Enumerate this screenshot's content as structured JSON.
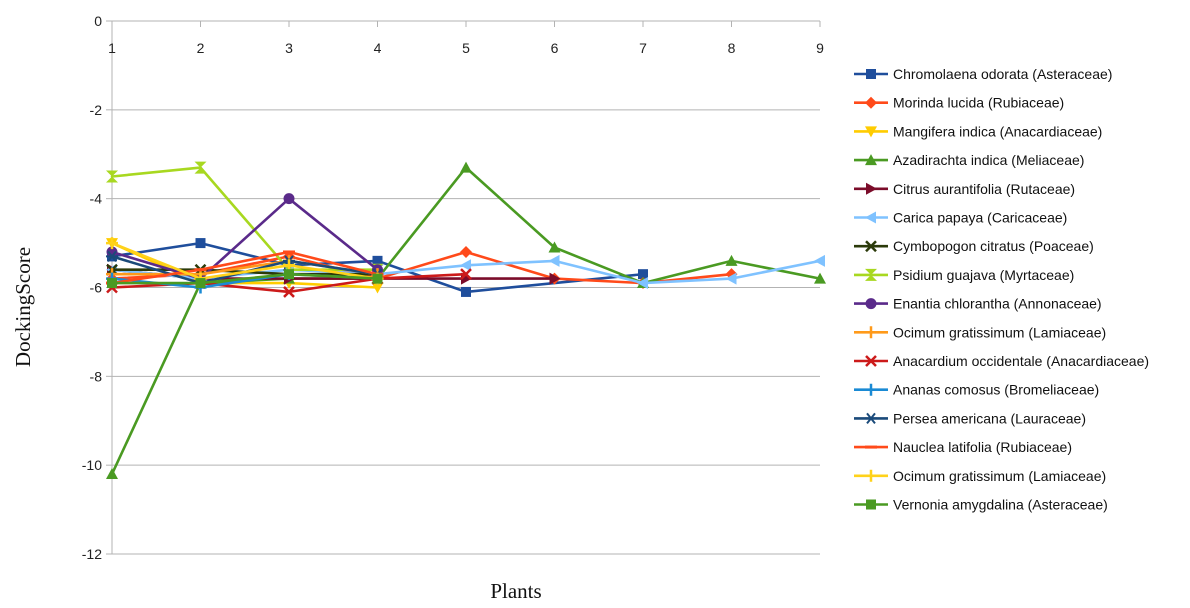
{
  "chart_data": {
    "type": "line",
    "title": "",
    "xlabel": "Plants",
    "ylabel": "DockingScore",
    "x": [
      1,
      2,
      3,
      4,
      5,
      6,
      7,
      8,
      9
    ],
    "x_tick_labels": [
      "1",
      "2",
      "3",
      "4",
      "5",
      "6",
      "7",
      "8",
      "9"
    ],
    "ylim": [
      -12,
      0
    ],
    "y_ticks": [
      0,
      -2,
      -4,
      -6,
      -8,
      -10,
      -12
    ],
    "y_tick_labels": [
      "0",
      "-2",
      "-4",
      "-6",
      "-8",
      "-10",
      "-12"
    ],
    "grid": "horizontal",
    "legend_position": "right",
    "series": [
      {
        "name": "Chromolaena odorata (Asteraceae)",
        "color": "#1f4e9c",
        "marker": "square",
        "values": [
          -5.3,
          -5.0,
          -5.5,
          -5.4,
          -6.1,
          null,
          -5.7,
          null,
          null
        ]
      },
      {
        "name": "Morinda lucida (Rubiaceae)",
        "color": "#ff4a1a",
        "marker": "diamond",
        "values": [
          -5.8,
          -5.7,
          -5.3,
          -5.8,
          -5.2,
          -5.8,
          -5.9,
          -5.7,
          null
        ]
      },
      {
        "name": "Mangifera indica (Anacardiaceae)",
        "color": "#ffcc00",
        "marker": "triangle-down",
        "values": [
          -5.0,
          -5.9,
          -5.9,
          -6.0,
          null,
          null,
          null,
          null,
          null
        ]
      },
      {
        "name": "Azadirachta indica (Meliaceae)",
        "color": "#4a9a22",
        "marker": "triangle-up",
        "values": [
          -10.2,
          -5.9,
          -5.8,
          -5.8,
          -3.3,
          -5.1,
          -5.9,
          -5.4,
          -5.8
        ]
      },
      {
        "name": "Citrus aurantifolia (Rutaceae)",
        "color": "#7b0c2a",
        "marker": "triangle-right",
        "values": [
          -5.6,
          -5.8,
          -5.8,
          -5.8,
          -5.8,
          -5.8,
          null,
          null,
          null
        ]
      },
      {
        "name": "Carica papaya (Caricaceae)",
        "color": "#7fc2ff",
        "marker": "triangle-left",
        "values": [
          -5.6,
          -5.8,
          -5.6,
          -5.7,
          -5.5,
          -5.4,
          -5.9,
          -5.8,
          -5.4
        ]
      },
      {
        "name": "Cymbopogon citratus (Poaceae)",
        "color": "#2b3a0a",
        "marker": "x-mark",
        "values": [
          -5.6,
          -5.6,
          -5.7,
          -5.7,
          null,
          null,
          null,
          null,
          null
        ]
      },
      {
        "name": "Psidium guajava (Myrtaceae)",
        "color": "#a8d820",
        "marker": "hourglass",
        "values": [
          -3.5,
          -3.3,
          -5.6,
          -5.6,
          null,
          null,
          null,
          null,
          null
        ]
      },
      {
        "name": "Enantia chlorantha (Annonaceae)",
        "color": "#5a2a8a",
        "marker": "circle",
        "values": [
          -5.2,
          -5.8,
          -4.0,
          -5.6,
          null,
          null,
          null,
          null,
          null
        ]
      },
      {
        "name": "Ocimum gratissimum (Lamiaceae)",
        "color": "#ff9a1a",
        "marker": "plus",
        "values": [
          -5.7,
          -5.7,
          -5.4,
          -5.7,
          null,
          null,
          null,
          null,
          null
        ]
      },
      {
        "name": "Anacardium occidentale (Anacardiaceae)",
        "color": "#cc1a1a",
        "marker": "x-mark",
        "values": [
          -6.0,
          -5.9,
          -6.1,
          -5.8,
          -5.7,
          null,
          null,
          null,
          null
        ]
      },
      {
        "name": "Ananas comosus (Bromeliaceae)",
        "color": "#1a8ad4",
        "marker": "plus",
        "values": [
          -5.8,
          -6.0,
          -5.7,
          -5.8,
          null,
          null,
          null,
          null,
          null
        ]
      },
      {
        "name": "Persea americana (Lauraceae)",
        "color": "#1a4a7a",
        "marker": "asterisk",
        "values": [
          -5.3,
          -5.9,
          -5.4,
          -5.7,
          null,
          null,
          null,
          null,
          null
        ]
      },
      {
        "name": "Nauclea latifolia (Rubiaceae)",
        "color": "#ff4a1a",
        "marker": "dash",
        "values": [
          -5.9,
          -5.6,
          -5.2,
          -5.7,
          null,
          null,
          null,
          null,
          null
        ]
      },
      {
        "name": "Ocimum gratissimum (Lamiaceae)",
        "color": "#ffd21a",
        "marker": "plus",
        "values": [
          -5.0,
          -5.8,
          -5.5,
          -5.8,
          null,
          null,
          null,
          null,
          null
        ]
      },
      {
        "name": "Vernonia amygdalina (Asteraceae)",
        "color": "#4a9a22",
        "marker": "square",
        "values": [
          -5.9,
          -5.9,
          -5.7,
          -5.8,
          null,
          null,
          null,
          null,
          null
        ]
      }
    ]
  }
}
